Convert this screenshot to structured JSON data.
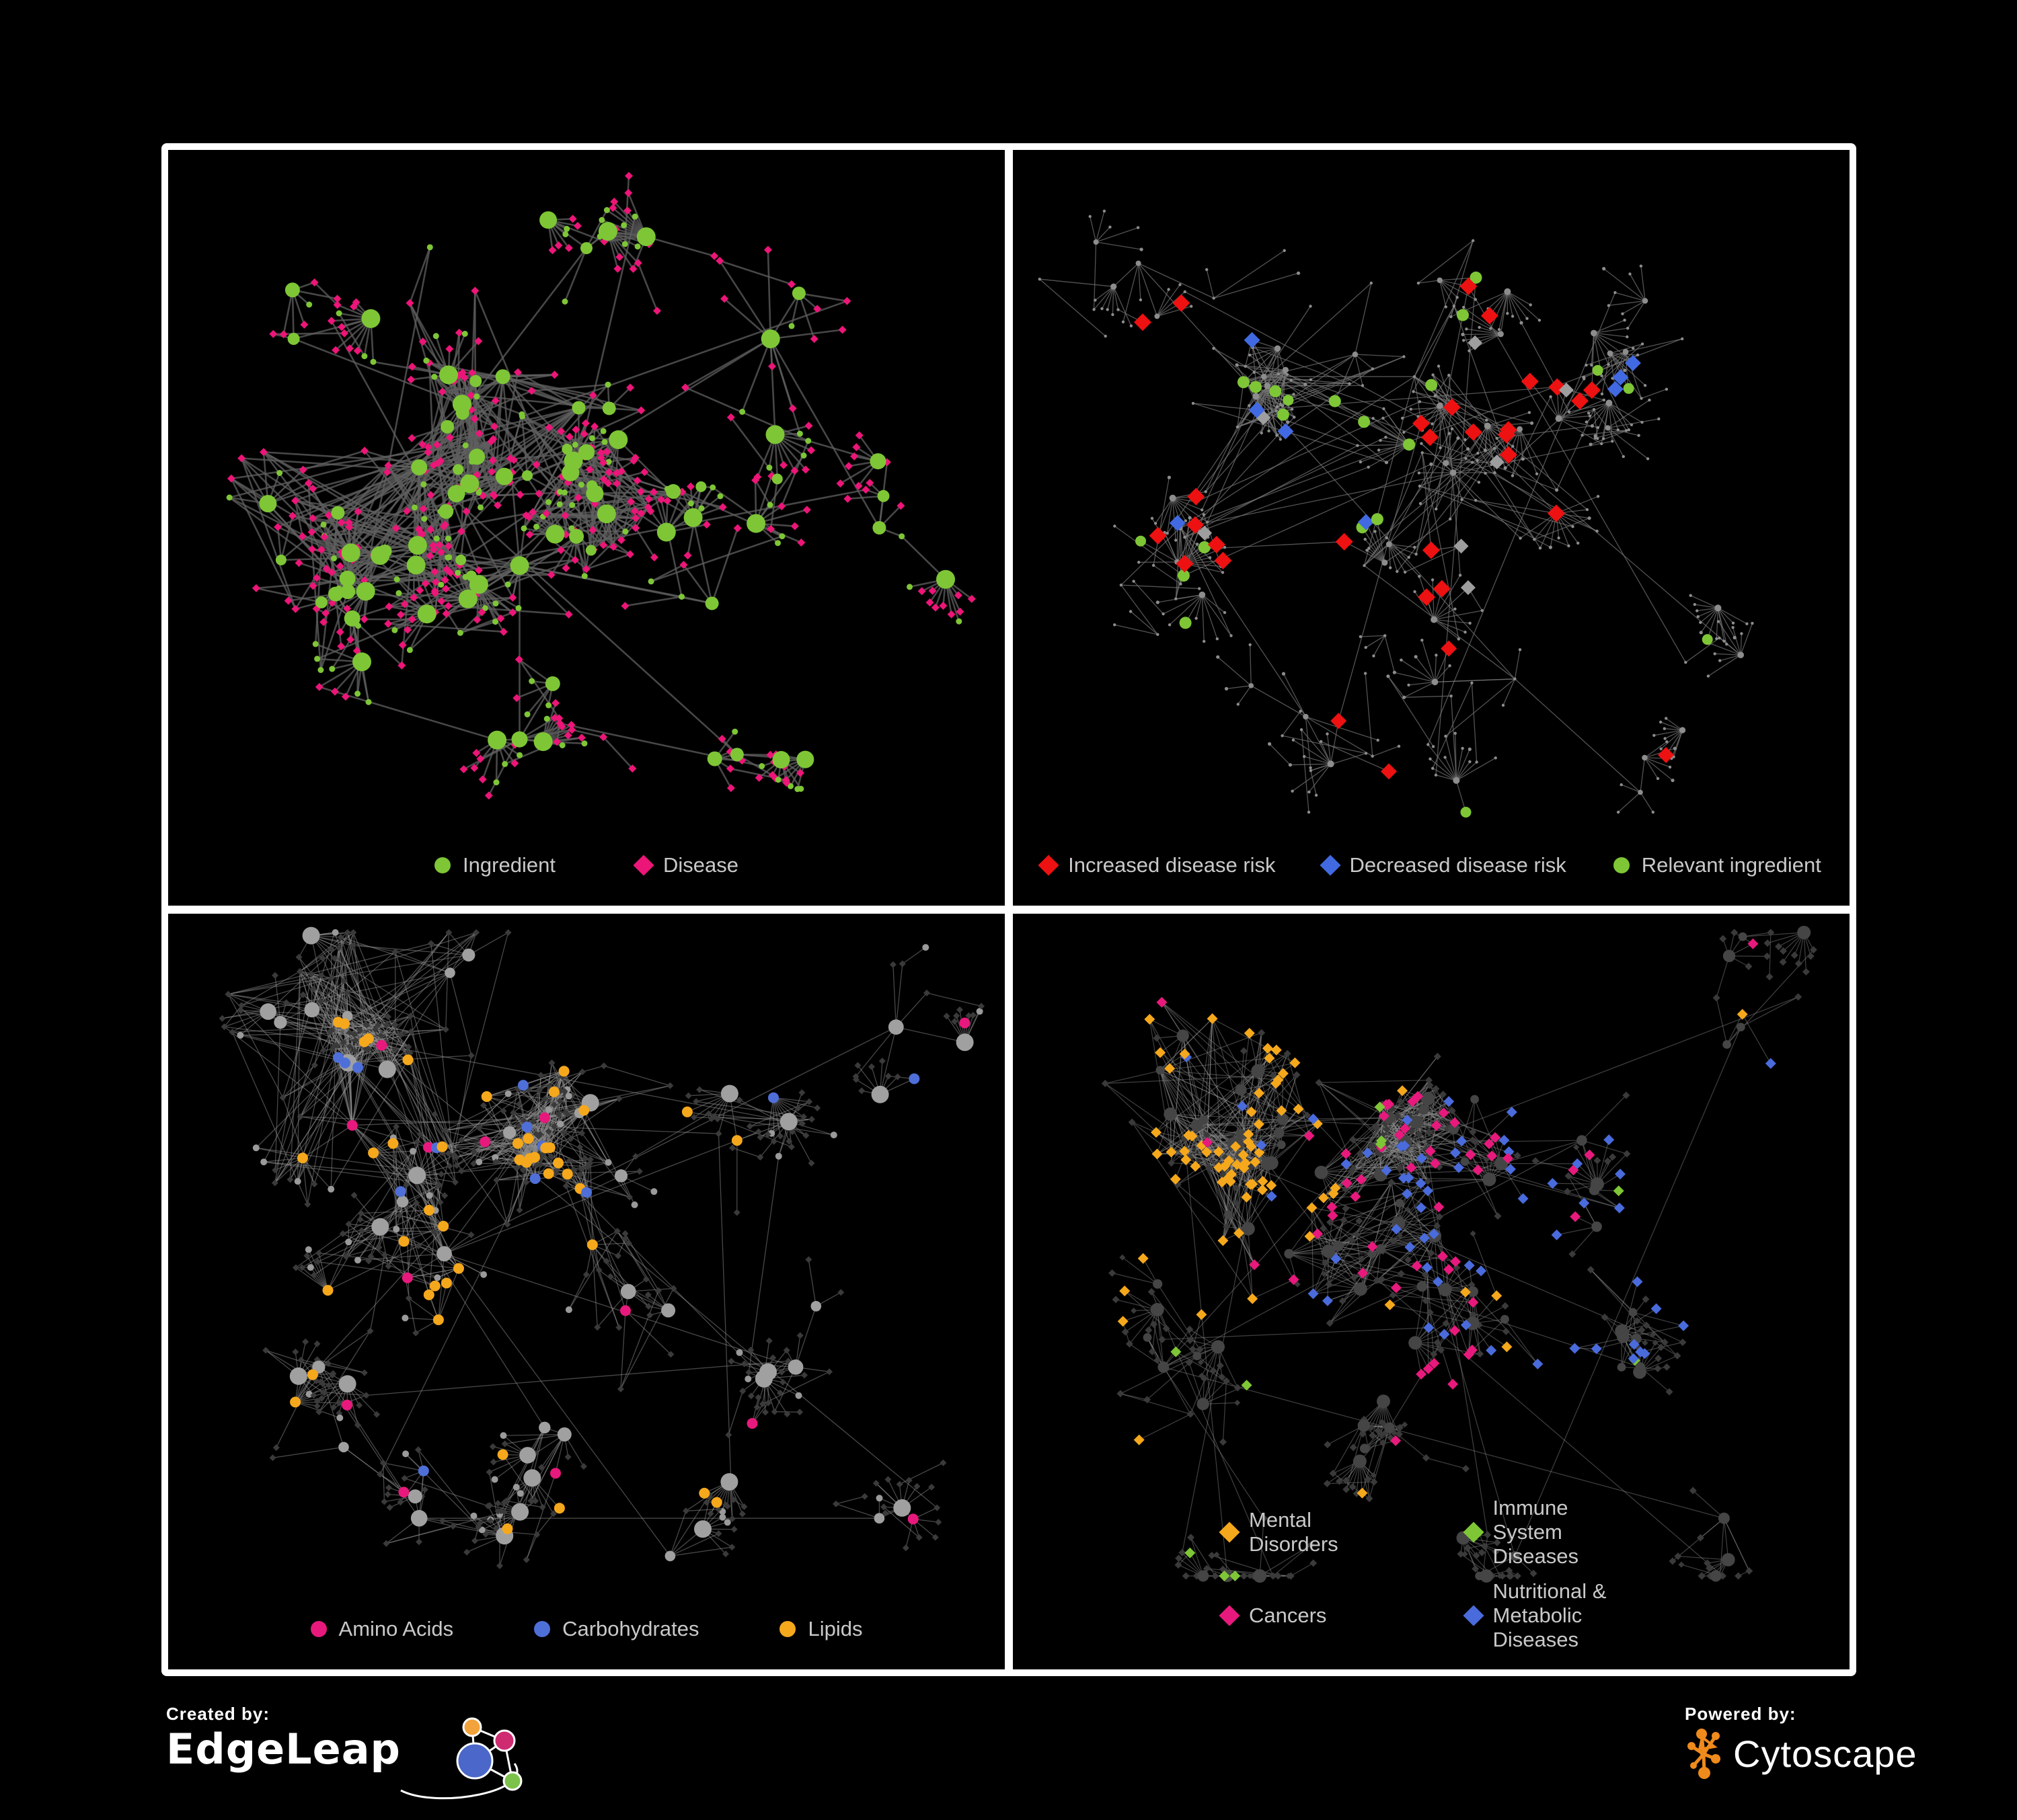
{
  "page": {
    "background": "#000000",
    "frame": "#ffffff"
  },
  "panels": [
    {
      "id": "ingredient-disease",
      "legend": {
        "layout": "row",
        "items": [
          {
            "label": "Ingredient",
            "color": "#7ec636",
            "shape": "c"
          },
          {
            "label": "Disease",
            "color": "#ec1578",
            "shape": "d"
          }
        ]
      },
      "net": {
        "seed": 7,
        "fanProb": 0.3,
        "hubKids": 2,
        "longEdges": 10,
        "edge": {
          "color": "#5f5f5f",
          "width": 2.6,
          "opacity": 0.75
        },
        "base": {
          "hub": {
            "shape": "c",
            "color": "#7ec636",
            "r0": 6,
            "rk": 1.0,
            "rmax": 14
          },
          "mixProb": 0.24,
          "mix": {
            "shape": "c",
            "color": "#7ec636",
            "r": 4.5
          },
          "leaf": {
            "shape": "d",
            "color": "#ec1578",
            "r": 6
          }
        },
        "clusters": [
          [
            0.4,
            0.3,
            70,
            0.085,
            1.2
          ],
          [
            0.3,
            0.42,
            90,
            0.1,
            1.5
          ],
          [
            0.5,
            0.4,
            70,
            0.08,
            1.2
          ],
          [
            0.42,
            0.55,
            50,
            0.09,
            0.6
          ],
          [
            0.22,
            0.62,
            45,
            0.1,
            0.2
          ],
          [
            0.65,
            0.6,
            40,
            0.09,
            0.2
          ],
          [
            0.72,
            0.25,
            45,
            0.1,
            0.1
          ],
          [
            0.5,
            0.13,
            35,
            0.09,
            0.1
          ],
          [
            0.15,
            0.25,
            30,
            0.09,
            0.1
          ],
          [
            0.42,
            0.78,
            35,
            0.08,
            0.2
          ],
          [
            0.68,
            0.8,
            25,
            0.07,
            0.1
          ],
          [
            0.85,
            0.5,
            20,
            0.07,
            0
          ]
        ],
        "highlights": []
      }
    },
    {
      "id": "disease-risk",
      "legend": {
        "layout": "row",
        "items": [
          {
            "label": "Increased disease risk",
            "color": "#ed1111",
            "shape": "d"
          },
          {
            "label": "Decreased disease risk",
            "color": "#4169e1",
            "shape": "d"
          },
          {
            "label": "Relevant ingredient",
            "color": "#7ec636",
            "shape": "c"
          }
        ]
      },
      "net": {
        "seed": 19,
        "fanProb": 0.5,
        "hubKids": 4,
        "longEdges": 14,
        "edge": {
          "color": "#767676",
          "width": 1.3,
          "opacity": 0.7
        },
        "base": {
          "hub": {
            "shape": "c",
            "color": "#8d8d8d",
            "r0": 3,
            "rk": 0.2,
            "rmax": 5
          },
          "mixProb": 0.12,
          "mix": {
            "shape": "c",
            "color": "#8d8d8d",
            "r": 2.6
          },
          "leaf": {
            "shape": "c",
            "color": "#8d8d8d",
            "r": 2.2
          }
        },
        "clusters": [
          [
            0.3,
            0.3,
            80,
            0.1,
            0.8
          ],
          [
            0.48,
            0.3,
            60,
            0.09,
            0.5
          ],
          [
            0.2,
            0.5,
            45,
            0.1,
            0.1
          ],
          [
            0.42,
            0.55,
            45,
            0.1,
            0.2
          ],
          [
            0.65,
            0.45,
            40,
            0.1,
            0.1
          ],
          [
            0.6,
            0.7,
            35,
            0.09,
            0.1
          ],
          [
            0.8,
            0.25,
            40,
            0.1,
            0
          ],
          [
            0.35,
            0.75,
            30,
            0.09,
            0
          ],
          [
            0.15,
            0.15,
            30,
            0.09,
            0
          ],
          [
            0.55,
            0.12,
            30,
            0.09,
            0
          ],
          [
            0.85,
            0.65,
            25,
            0.08,
            0
          ],
          [
            0.75,
            0.85,
            20,
            0.07,
            0
          ]
        ],
        "highlights": [
          {
            "count": 26,
            "color": "#ed1111",
            "shape": "d",
            "r": 13,
            "bias": [
              0.42,
              0.36,
              0.32
            ]
          },
          {
            "count": 4,
            "color": "#ed1111",
            "shape": "d",
            "r": 12,
            "bias": [
              0.6,
              0.78,
              0.22
            ]
          },
          {
            "count": 5,
            "color": "#4169e1",
            "shape": "d",
            "r": 12,
            "bias": [
              0.3,
              0.42,
              0.18
            ]
          },
          {
            "count": 3,
            "color": "#4169e1",
            "shape": "d",
            "r": 12,
            "bias": [
              0.85,
              0.28,
              0.14
            ]
          },
          {
            "count": 7,
            "color": "#9e9e9e",
            "shape": "d",
            "r": 11,
            "bias": [
              0.45,
              0.42,
              0.3
            ]
          },
          {
            "count": 15,
            "color": "#7ec636",
            "shape": "c",
            "r": 9,
            "bias": [
              0.33,
              0.36,
              0.3
            ]
          },
          {
            "count": 6,
            "color": "#7ec636",
            "shape": "c",
            "r": 8
          }
        ]
      }
    },
    {
      "id": "nutrient-classes",
      "legend": {
        "layout": "row",
        "items": [
          {
            "label": "Amino Acids",
            "color": "#e8197d",
            "shape": "c"
          },
          {
            "label": "Carbohydrates",
            "color": "#4f6fd8",
            "shape": "c"
          },
          {
            "label": "Lipids",
            "color": "#f5a81c",
            "shape": "c"
          }
        ]
      },
      "net": {
        "seed": 33,
        "fanProb": 0.34,
        "hubKids": 2,
        "longEdges": 12,
        "edge": {
          "color": "#8f8f8f",
          "width": 1.3,
          "opacity": 0.5
        },
        "base": {
          "hub": {
            "shape": "c",
            "color": "#a0a0a0",
            "r0": 6,
            "rk": 0.9,
            "rmax": 13
          },
          "mixProb": 0.2,
          "mix": {
            "shape": "c",
            "color": "#9a9a9a",
            "r": 5
          },
          "leaf": {
            "shape": "d",
            "color": "#3a3a3a",
            "r": 5
          }
        },
        "clusters": [
          [
            0.22,
            0.28,
            110,
            0.09,
            2.0
          ],
          [
            0.45,
            0.27,
            100,
            0.085,
            2.0
          ],
          [
            0.33,
            0.45,
            60,
            0.09,
            1.0
          ],
          [
            0.55,
            0.5,
            45,
            0.08,
            0.3
          ],
          [
            0.18,
            0.6,
            45,
            0.09,
            0.2
          ],
          [
            0.45,
            0.68,
            40,
            0.08,
            0.4
          ],
          [
            0.68,
            0.3,
            40,
            0.09,
            0.2
          ],
          [
            0.75,
            0.6,
            35,
            0.08,
            0.2
          ],
          [
            0.3,
            0.8,
            30,
            0.08,
            0.3
          ],
          [
            0.6,
            0.85,
            25,
            0.07,
            0.2
          ],
          [
            0.85,
            0.8,
            20,
            0.07,
            0.1
          ],
          [
            0.87,
            0.15,
            25,
            0.08,
            0.1
          ]
        ],
        "highlights": [
          {
            "count": 28,
            "color": "#f5a81c",
            "r": 8,
            "target": "c",
            "bias": [
              0.42,
              0.28,
              0.3
            ]
          },
          {
            "count": 16,
            "color": "#f5a81c",
            "r": 8,
            "target": "c",
            "bias": [
              0.4,
              0.6,
              0.4
            ]
          },
          {
            "count": 9,
            "color": "#4f6fd8",
            "r": 8,
            "target": "c",
            "bias": [
              0.45,
              0.2,
              0.28
            ]
          },
          {
            "count": 4,
            "color": "#4f6fd8",
            "r": 8,
            "target": "c"
          },
          {
            "count": 13,
            "color": "#e8197d",
            "r": 8,
            "target": "c"
          }
        ]
      }
    },
    {
      "id": "disease-categories",
      "legend": {
        "layout": "grid",
        "items": [
          {
            "label": "Mental Disorders",
            "color": "#f5a81c",
            "shape": "d"
          },
          {
            "label": "Immune System Diseases",
            "color": "#7ec636",
            "shape": "d"
          },
          {
            "label": "Cancers",
            "color": "#e8197d",
            "shape": "d"
          },
          {
            "label": "Nutritional & Metabolic Diseases",
            "color": "#4a6bdc",
            "shape": "d"
          }
        ]
      },
      "net": {
        "seed": 47,
        "fanProb": 0.34,
        "hubKids": 2,
        "longEdges": 12,
        "edge": {
          "color": "#8d8d8d",
          "width": 1.2,
          "opacity": 0.45
        },
        "base": {
          "hub": {
            "shape": "c",
            "color": "#454545",
            "r0": 5,
            "rk": 0.7,
            "rmax": 10
          },
          "mixProb": 0.12,
          "mix": {
            "shape": "d",
            "color": "#3a3a3a",
            "r": 4.5
          },
          "leaf": {
            "shape": "d",
            "color": "#3a3a3a",
            "r": 5.5
          }
        },
        "clusters": [
          [
            0.22,
            0.28,
            110,
            0.09,
            2.0
          ],
          [
            0.45,
            0.27,
            100,
            0.085,
            2.0
          ],
          [
            0.33,
            0.45,
            60,
            0.09,
            1.0
          ],
          [
            0.55,
            0.5,
            45,
            0.08,
            0.3
          ],
          [
            0.18,
            0.6,
            45,
            0.09,
            0.2
          ],
          [
            0.45,
            0.68,
            40,
            0.08,
            0.4
          ],
          [
            0.68,
            0.3,
            40,
            0.09,
            0.2
          ],
          [
            0.75,
            0.6,
            35,
            0.08,
            0.2
          ],
          [
            0.3,
            0.8,
            30,
            0.08,
            0.3
          ],
          [
            0.6,
            0.85,
            25,
            0.07,
            0.2
          ],
          [
            0.85,
            0.8,
            20,
            0.07,
            0.1
          ],
          [
            0.87,
            0.15,
            25,
            0.08,
            0.1
          ]
        ],
        "highlights": [
          {
            "count": 65,
            "color": "#f5a81c",
            "shape": "d",
            "r": 8,
            "target": "d",
            "bias": [
              0.17,
              0.33,
              0.22
            ]
          },
          {
            "count": 10,
            "color": "#f5a81c",
            "shape": "d",
            "r": 8,
            "target": "d"
          },
          {
            "count": 45,
            "color": "#e8197d",
            "shape": "d",
            "r": 8,
            "target": "d",
            "bias": [
              0.47,
              0.43,
              0.22
            ]
          },
          {
            "count": 8,
            "color": "#e8197d",
            "shape": "d",
            "r": 8,
            "target": "d"
          },
          {
            "count": 40,
            "color": "#4a6bdc",
            "shape": "d",
            "r": 8,
            "target": "d",
            "bias": [
              0.75,
              0.45,
              0.33
            ]
          },
          {
            "count": 20,
            "color": "#4a6bdc",
            "shape": "d",
            "r": 8,
            "target": "d",
            "bias": [
              0.35,
              0.14,
              0.4
            ]
          },
          {
            "count": 10,
            "color": "#7ec636",
            "shape": "d",
            "r": 8,
            "target": "d"
          }
        ]
      }
    }
  ],
  "footer": {
    "left": {
      "caption": "Created by:",
      "brand": "EdgeLeap"
    },
    "right": {
      "caption": "Powered by:",
      "brand": "Cytoscape"
    },
    "edgeleap_colors": {
      "orange": "#f2a33c",
      "pink": "#cf2b71",
      "blue": "#4a67c9",
      "green": "#7cc24a"
    },
    "cytoscape_color": "#ef8a1c"
  }
}
